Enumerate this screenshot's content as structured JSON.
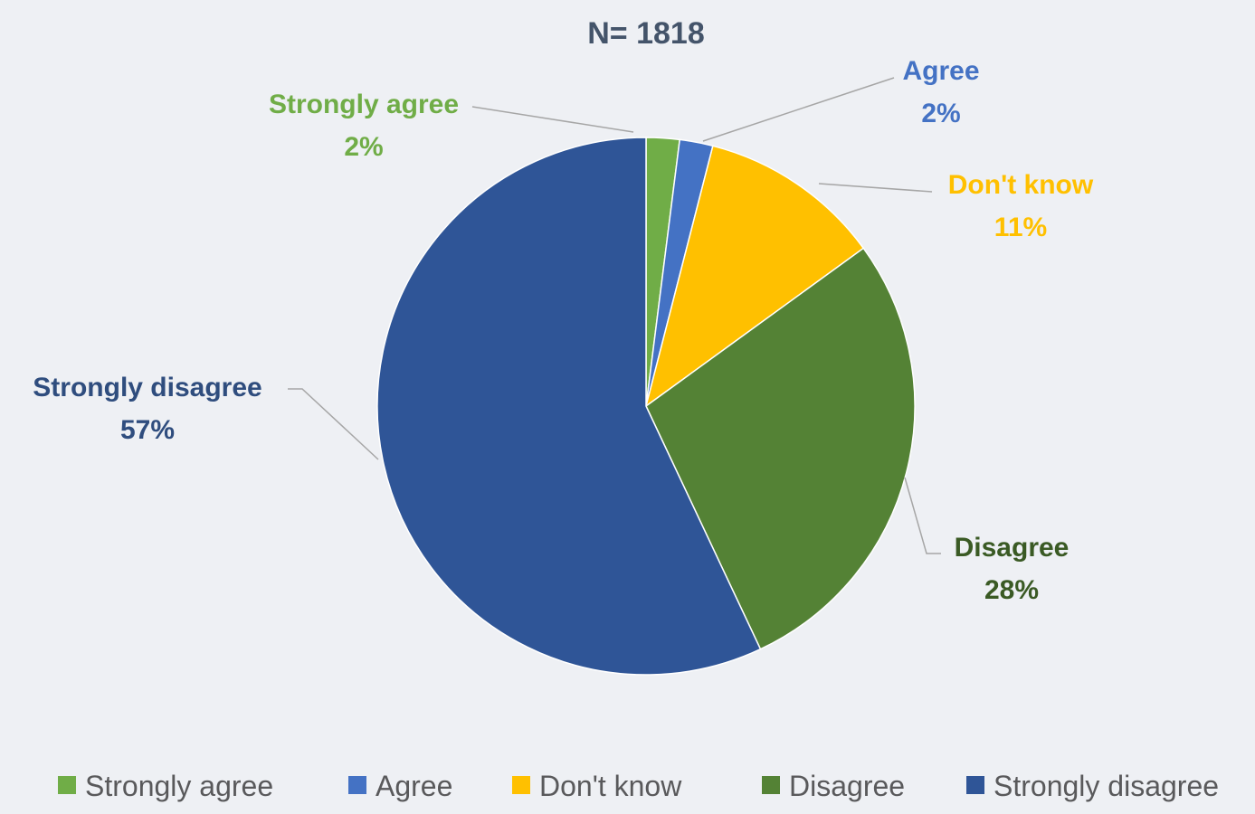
{
  "chart_data": {
    "type": "pie",
    "title": "N= 1818",
    "categories": [
      "Strongly agree",
      "Agree",
      "Don't know",
      "Disagree",
      "Strongly disagree"
    ],
    "values": [
      2,
      2,
      11,
      28,
      57
    ],
    "value_labels": [
      "2%",
      "2%",
      "11%",
      "28%",
      "57%"
    ],
    "colors": [
      "#70ad47",
      "#4472c4",
      "#ffc000",
      "#548235",
      "#2f5597"
    ],
    "label_colors": [
      "#70ad47",
      "#4472c4",
      "#ffc000",
      "#3a5a24",
      "#2f4d7e"
    ],
    "legend_position": "bottom",
    "start_angle": "12 o'clock",
    "direction": "clockwise"
  }
}
